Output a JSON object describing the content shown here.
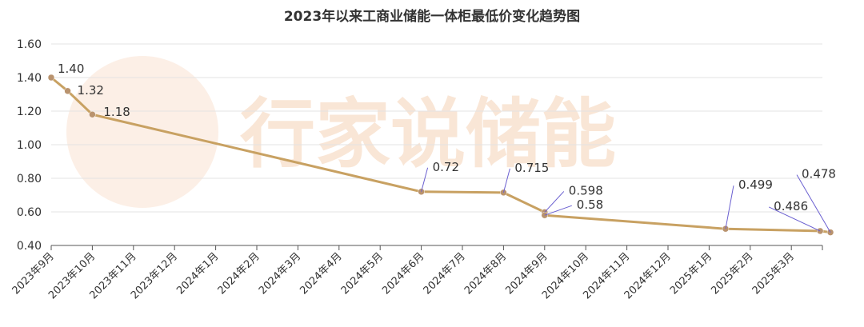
{
  "chart_data": {
    "type": "line",
    "title": "2023年以来工商业储能一体柜最低价变化趋势图",
    "watermark": "行家说储能",
    "xlabel": "",
    "ylabel": "",
    "ylim": [
      0.4,
      1.6
    ],
    "yticks": [
      "0.40",
      "0.60",
      "0.80",
      "1.00",
      "1.20",
      "1.40",
      "1.60"
    ],
    "categories": [
      "2023年9月",
      "2023年10月",
      "2023年11月",
      "2023年12月",
      "2024年1月",
      "2024年2月",
      "2024年3月",
      "2024年4月",
      "2024年5月",
      "2024年6月",
      "2024年7月",
      "2024年8月",
      "2024年9月",
      "2024年10月",
      "2024年11月",
      "2024年12月",
      "2025年1月",
      "2025年2月",
      "2025年3月"
    ],
    "line_color": "#c8a162",
    "points": [
      {
        "x": 0.0,
        "value": 1.4,
        "label": "1.40"
      },
      {
        "x": 0.4,
        "value": 1.32,
        "label": "1.32"
      },
      {
        "x": 1.0,
        "value": 1.18,
        "label": "1.18"
      },
      {
        "x": 9.0,
        "value": 0.72,
        "label": "0.72"
      },
      {
        "x": 11.0,
        "value": 0.715,
        "label": "0.715"
      },
      {
        "x": 12.0,
        "value": 0.598,
        "label": "0.598"
      },
      {
        "x": 12.0,
        "value": 0.58,
        "label": "0.58"
      },
      {
        "x": 16.4,
        "value": 0.499,
        "label": "0.499"
      },
      {
        "x": 18.7,
        "value": 0.486,
        "label": "0.486"
      },
      {
        "x": 18.95,
        "value": 0.478,
        "label": "0.478"
      }
    ]
  }
}
